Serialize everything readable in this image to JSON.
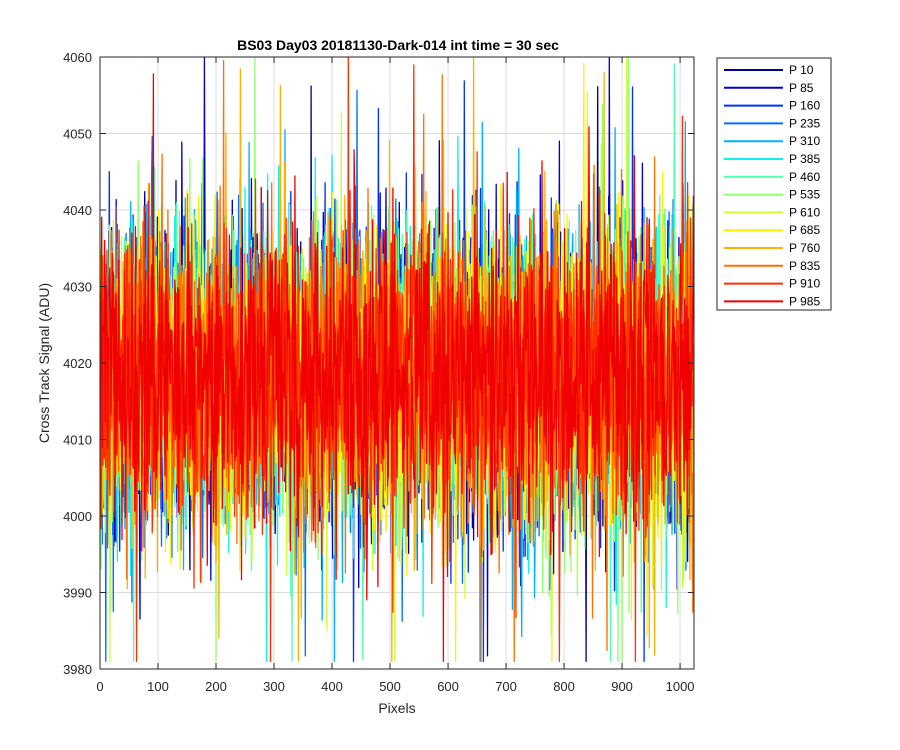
{
  "chart_data": {
    "type": "line",
    "title": "BS03 Day03 20181130-Dark-014 int time = 30 sec",
    "xlabel": "Pixels",
    "ylabel": "Cross Track Signal (ADU)",
    "xlim": [
      0,
      1024
    ],
    "ylim": [
      3980,
      4060
    ],
    "xticks": [
      0,
      100,
      200,
      300,
      400,
      500,
      600,
      700,
      800,
      900,
      1000
    ],
    "yticks": [
      3980,
      3990,
      4000,
      4010,
      4020,
      4030,
      4040,
      4050,
      4060
    ],
    "grid": true,
    "legend_position": "outside-top-right",
    "summary": {
      "mean": 4018,
      "typical_range": [
        4000,
        4038
      ],
      "observed_min": 3981,
      "observed_max": 4060
    },
    "series": [
      {
        "name": "P 10",
        "color": "#00008F"
      },
      {
        "name": "P 85",
        "color": "#0000D0"
      },
      {
        "name": "P 160",
        "color": "#0030FF"
      },
      {
        "name": "P 235",
        "color": "#0070FF"
      },
      {
        "name": "P 310",
        "color": "#00B0FF"
      },
      {
        "name": "P 385",
        "color": "#10F0F0"
      },
      {
        "name": "P 460",
        "color": "#50FFB0"
      },
      {
        "name": "P 535",
        "color": "#90FF70"
      },
      {
        "name": "P 610",
        "color": "#D0FF30"
      },
      {
        "name": "P 685",
        "color": "#FFF000"
      },
      {
        "name": "P 760",
        "color": "#FFB000"
      },
      {
        "name": "P 835",
        "color": "#FF7000"
      },
      {
        "name": "P 910",
        "color": "#FF3000"
      },
      {
        "name": "P 985",
        "color": "#F00000"
      }
    ]
  }
}
